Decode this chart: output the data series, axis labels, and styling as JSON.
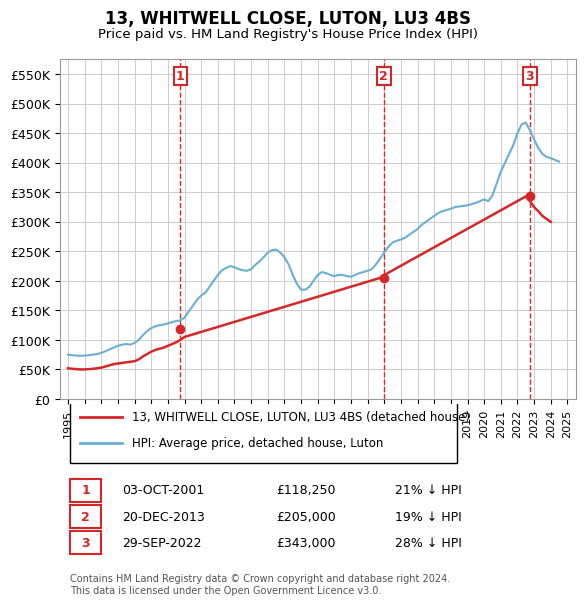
{
  "title": "13, WHITWELL CLOSE, LUTON, LU3 4BS",
  "subtitle": "Price paid vs. HM Land Registry's House Price Index (HPI)",
  "ylabel_ticks": [
    "£0",
    "£50K",
    "£100K",
    "£150K",
    "£200K",
    "£250K",
    "£300K",
    "£350K",
    "£400K",
    "£450K",
    "£500K",
    "£550K"
  ],
  "ytick_values": [
    0,
    50000,
    100000,
    150000,
    200000,
    250000,
    300000,
    350000,
    400000,
    450000,
    500000,
    550000
  ],
  "ylim": [
    0,
    575000
  ],
  "xlim_start": 1994.5,
  "xlim_end": 2025.5,
  "hpi_line_color": "#6baed6",
  "price_line_color": "#d62728",
  "marker_box_color": "#d62728",
  "hpi_data": {
    "years": [
      1995.0,
      1995.25,
      1995.5,
      1995.75,
      1996.0,
      1996.25,
      1996.5,
      1996.75,
      1997.0,
      1997.25,
      1997.5,
      1997.75,
      1998.0,
      1998.25,
      1998.5,
      1998.75,
      1999.0,
      1999.25,
      1999.5,
      1999.75,
      2000.0,
      2000.25,
      2000.5,
      2000.75,
      2001.0,
      2001.25,
      2001.5,
      2001.75,
      2002.0,
      2002.25,
      2002.5,
      2002.75,
      2003.0,
      2003.25,
      2003.5,
      2003.75,
      2004.0,
      2004.25,
      2004.5,
      2004.75,
      2005.0,
      2005.25,
      2005.5,
      2005.75,
      2006.0,
      2006.25,
      2006.5,
      2006.75,
      2007.0,
      2007.25,
      2007.5,
      2007.75,
      2008.0,
      2008.25,
      2008.5,
      2008.75,
      2009.0,
      2009.25,
      2009.5,
      2009.75,
      2010.0,
      2010.25,
      2010.5,
      2010.75,
      2011.0,
      2011.25,
      2011.5,
      2011.75,
      2012.0,
      2012.25,
      2012.5,
      2012.75,
      2013.0,
      2013.25,
      2013.5,
      2013.75,
      2014.0,
      2014.25,
      2014.5,
      2014.75,
      2015.0,
      2015.25,
      2015.5,
      2015.75,
      2016.0,
      2016.25,
      2016.5,
      2016.75,
      2017.0,
      2017.25,
      2017.5,
      2017.75,
      2018.0,
      2018.25,
      2018.5,
      2018.75,
      2019.0,
      2019.25,
      2019.5,
      2019.75,
      2020.0,
      2020.25,
      2020.5,
      2020.75,
      2021.0,
      2021.25,
      2021.5,
      2021.75,
      2022.0,
      2022.25,
      2022.5,
      2022.75,
      2023.0,
      2023.25,
      2023.5,
      2023.75,
      2024.0,
      2024.25,
      2024.5
    ],
    "values": [
      75000,
      74000,
      73500,
      73000,
      73500,
      74000,
      75000,
      76000,
      78000,
      81000,
      84000,
      87000,
      90000,
      92000,
      93000,
      92000,
      95000,
      100000,
      108000,
      115000,
      120000,
      123000,
      125000,
      126000,
      128000,
      130000,
      132000,
      133000,
      138000,
      148000,
      158000,
      168000,
      175000,
      180000,
      190000,
      200000,
      210000,
      218000,
      222000,
      225000,
      223000,
      220000,
      218000,
      217000,
      220000,
      227000,
      233000,
      240000,
      248000,
      252000,
      253000,
      248000,
      240000,
      228000,
      210000,
      195000,
      185000,
      185000,
      190000,
      200000,
      210000,
      215000,
      213000,
      210000,
      208000,
      210000,
      210000,
      208000,
      207000,
      210000,
      213000,
      215000,
      217000,
      220000,
      228000,
      238000,
      248000,
      258000,
      265000,
      268000,
      270000,
      273000,
      278000,
      283000,
      288000,
      295000,
      300000,
      305000,
      310000,
      315000,
      318000,
      320000,
      322000,
      325000,
      326000,
      327000,
      328000,
      330000,
      332000,
      335000,
      338000,
      335000,
      345000,
      365000,
      385000,
      400000,
      415000,
      430000,
      450000,
      465000,
      468000,
      455000,
      440000,
      425000,
      415000,
      410000,
      408000,
      405000,
      402000
    ]
  },
  "price_data": {
    "years": [
      1995.0,
      1995.25,
      1995.5,
      1995.75,
      1996.0,
      1996.25,
      1996.5,
      1996.75,
      1997.0,
      1997.25,
      1997.5,
      1997.75,
      1998.0,
      1998.25,
      1998.5,
      1998.75,
      1999.0,
      1999.25,
      1999.5,
      1999.75,
      2000.0,
      2000.25,
      2000.5,
      2000.75,
      2001.0,
      2001.25,
      2001.5,
      2001.75,
      2002.0,
      2013.75,
      2014.0,
      2022.5,
      2022.75,
      2023.0,
      2023.25,
      2023.5,
      2023.75,
      2024.0
    ],
    "values": [
      52000,
      51000,
      50500,
      50000,
      50000,
      50500,
      51000,
      52000,
      53000,
      55000,
      57000,
      59000,
      60000,
      61000,
      62000,
      63000,
      64000,
      67000,
      72000,
      76000,
      80000,
      83000,
      85000,
      87000,
      90000,
      93000,
      96000,
      100000,
      105000,
      205000,
      210000,
      343000,
      335000,
      325000,
      318000,
      310000,
      305000,
      300000
    ]
  },
  "sales": [
    {
      "num": 1,
      "year": 2001.75,
      "price": 118250,
      "date": "03-OCT-2001",
      "pct": "21%",
      "direction": "↓"
    },
    {
      "num": 2,
      "year": 2013.96,
      "price": 205000,
      "date": "20-DEC-2013",
      "pct": "19%",
      "direction": "↓"
    },
    {
      "num": 3,
      "year": 2022.75,
      "price": 343000,
      "date": "29-SEP-2022",
      "pct": "28%",
      "direction": "↓"
    }
  ],
  "legend_label_red": "13, WHITWELL CLOSE, LUTON, LU3 4BS (detached house)",
  "legend_label_blue": "HPI: Average price, detached house, Luton",
  "footer": "Contains HM Land Registry data © Crown copyright and database right 2024.\nThis data is licensed under the Open Government Licence v3.0.",
  "bg_color": "#ffffff",
  "grid_color": "#cccccc",
  "vline_color": "#d62728"
}
